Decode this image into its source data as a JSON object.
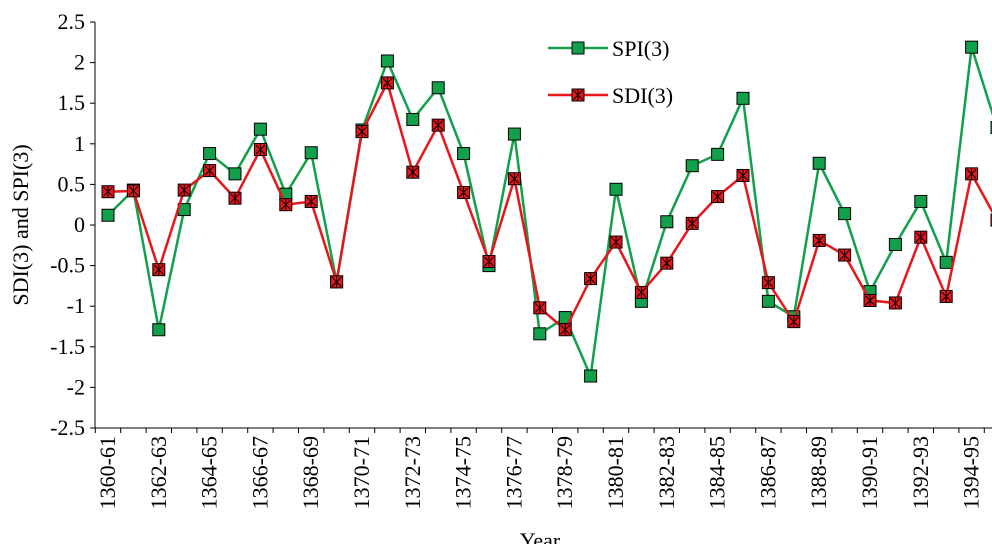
{
  "chart_data": {
    "type": "line",
    "x_label": "Year",
    "y_label": "SDI(3) and SPI(3)",
    "categories": [
      "1360-61",
      null,
      "1362-63",
      null,
      "1364-65",
      null,
      "1366-67",
      null,
      "1368-69",
      null,
      "1370-71",
      null,
      "1372-73",
      null,
      "1374-75",
      null,
      "1376-77",
      null,
      "1378-79",
      null,
      "1380-81",
      null,
      "1382-83",
      null,
      "1384-85",
      null,
      "1386-87",
      null,
      "1388-89",
      null,
      "1390-91",
      null,
      "1392-93",
      null,
      "1394-95",
      null
    ],
    "series": [
      {
        "name": "SPI(3)",
        "color": "#12a04b",
        "marker": "square",
        "values": [
          0.12,
          0.43,
          -1.29,
          0.19,
          0.88,
          0.63,
          1.18,
          0.38,
          0.89,
          -0.7,
          1.17,
          2.02,
          1.3,
          1.69,
          0.88,
          -0.5,
          1.12,
          -1.34,
          -1.14,
          -1.86,
          0.44,
          -0.94,
          0.04,
          0.73,
          0.87,
          1.56,
          -0.94,
          -1.13,
          0.76,
          0.14,
          -0.82,
          -0.24,
          0.29,
          -0.46,
          2.19,
          1.2
        ]
      },
      {
        "name": "SDI(3)",
        "color": "#e8161b",
        "marker": "square-asterisk",
        "values": [
          0.41,
          0.42,
          -0.55,
          0.43,
          0.67,
          0.33,
          0.93,
          0.25,
          0.29,
          -0.7,
          1.15,
          1.75,
          0.65,
          1.23,
          0.4,
          -0.45,
          0.57,
          -1.02,
          -1.29,
          -0.66,
          -0.21,
          -0.83,
          -0.47,
          0.02,
          0.35,
          0.61,
          -0.71,
          -1.19,
          -0.19,
          -0.37,
          -0.93,
          -0.96,
          -0.15,
          -0.88,
          0.63,
          0.06
        ]
      }
    ],
    "ylim": [
      -2.5,
      2.5
    ],
    "yticks": [
      -2.5,
      -2,
      -1.5,
      -1,
      -0.5,
      0,
      0.5,
      1,
      1.5,
      2,
      2.5
    ],
    "grid": false,
    "legend": "upper right"
  }
}
